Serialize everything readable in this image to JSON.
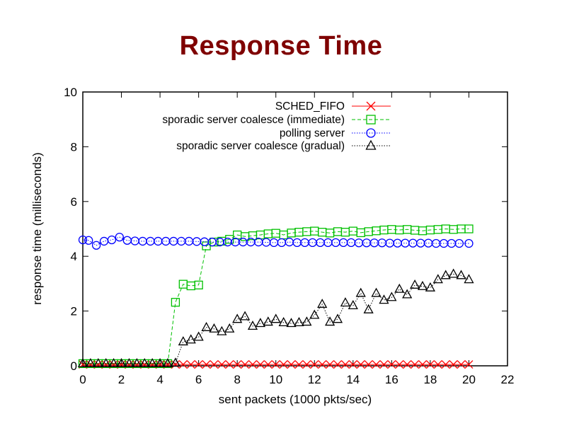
{
  "slide": {
    "title": "Response Time"
  },
  "chart_data": {
    "type": "line",
    "title": "",
    "xlabel": "sent packets (1000 pkts/sec)",
    "ylabel": "response time (milliseconds)",
    "xlim": [
      0,
      22
    ],
    "ylim": [
      0,
      10
    ],
    "xticks": [
      0,
      2,
      4,
      6,
      8,
      10,
      12,
      14,
      16,
      18,
      20,
      22
    ],
    "yticks": [
      0,
      2,
      4,
      6,
      8,
      10
    ],
    "grid": false,
    "legend_position": "top-right",
    "series": [
      {
        "name": "SCHED_FIFO",
        "color": "#ff0000",
        "marker": "x",
        "dash": "solid",
        "x": [
          0,
          0.4,
          0.8,
          1.2,
          1.6,
          2.0,
          2.4,
          2.8,
          3.2,
          3.6,
          4.0,
          4.4,
          4.8,
          5.2,
          5.6,
          6.0,
          6.4,
          6.8,
          7.2,
          7.6,
          8.0,
          8.4,
          8.8,
          9.2,
          9.6,
          10.0,
          10.4,
          10.8,
          11.2,
          11.6,
          12.0,
          12.4,
          12.8,
          13.2,
          13.6,
          14.0,
          14.4,
          14.8,
          15.2,
          15.6,
          16.0,
          16.4,
          16.8,
          17.2,
          17.6,
          18.0,
          18.4,
          18.8,
          19.2,
          19.6,
          20.0
        ],
        "y": [
          0.05,
          0.05,
          0.05,
          0.05,
          0.05,
          0.05,
          0.05,
          0.05,
          0.05,
          0.05,
          0.05,
          0.05,
          0.05,
          0.05,
          0.05,
          0.05,
          0.05,
          0.05,
          0.05,
          0.05,
          0.05,
          0.05,
          0.05,
          0.05,
          0.05,
          0.05,
          0.05,
          0.05,
          0.05,
          0.05,
          0.05,
          0.05,
          0.05,
          0.05,
          0.05,
          0.05,
          0.05,
          0.05,
          0.05,
          0.05,
          0.05,
          0.05,
          0.05,
          0.05,
          0.05,
          0.05,
          0.05,
          0.05,
          0.05,
          0.05,
          0.05
        ]
      },
      {
        "name": "sporadic server coalesce (immediate)",
        "color": "#00c000",
        "marker": "square",
        "dash": "dashed",
        "x": [
          0,
          0.4,
          0.8,
          1.2,
          1.6,
          2.0,
          2.4,
          2.8,
          3.2,
          3.6,
          4.0,
          4.4,
          4.8,
          5.2,
          5.6,
          6.0,
          6.4,
          6.8,
          7.2,
          7.6,
          8.0,
          8.4,
          8.8,
          9.2,
          9.6,
          10.0,
          10.4,
          10.8,
          11.2,
          11.6,
          12.0,
          12.4,
          12.8,
          13.2,
          13.6,
          14.0,
          14.4,
          14.8,
          15.2,
          15.6,
          16.0,
          16.4,
          16.8,
          17.2,
          17.6,
          18.0,
          18.4,
          18.8,
          19.2,
          19.6,
          20.0
        ],
        "y": [
          0.08,
          0.08,
          0.08,
          0.08,
          0.08,
          0.08,
          0.08,
          0.08,
          0.08,
          0.08,
          0.08,
          0.08,
          2.32,
          2.98,
          2.92,
          2.95,
          4.38,
          4.52,
          4.55,
          4.62,
          4.78,
          4.72,
          4.75,
          4.78,
          4.82,
          4.84,
          4.78,
          4.85,
          4.88,
          4.9,
          4.92,
          4.88,
          4.85,
          4.9,
          4.88,
          4.92,
          4.86,
          4.9,
          4.93,
          4.96,
          4.98,
          4.96,
          4.98,
          4.95,
          4.93,
          4.96,
          4.98,
          5.0,
          4.98,
          5.0,
          5.0
        ]
      },
      {
        "name": "polling server",
        "color": "#0000ff",
        "marker": "circle",
        "dash": "dotted",
        "x": [
          0,
          0.3,
          0.7,
          1.1,
          1.5,
          1.9,
          2.3,
          2.7,
          3.1,
          3.5,
          3.9,
          4.3,
          4.7,
          5.1,
          5.5,
          5.9,
          6.3,
          6.7,
          7.1,
          7.5,
          7.9,
          8.3,
          8.7,
          9.1,
          9.5,
          9.9,
          10.3,
          10.7,
          11.1,
          11.5,
          11.9,
          12.3,
          12.7,
          13.1,
          13.5,
          13.9,
          14.3,
          14.7,
          15.1,
          15.5,
          15.9,
          16.3,
          16.7,
          17.1,
          17.5,
          17.9,
          18.3,
          18.7,
          19.1,
          19.5,
          20.0
        ],
        "y": [
          4.6,
          4.58,
          4.4,
          4.55,
          4.6,
          4.7,
          4.58,
          4.56,
          4.55,
          4.55,
          4.55,
          4.55,
          4.55,
          4.55,
          4.55,
          4.54,
          4.53,
          4.52,
          4.52,
          4.52,
          4.52,
          4.52,
          4.52,
          4.52,
          4.51,
          4.5,
          4.5,
          4.52,
          4.5,
          4.5,
          4.5,
          4.5,
          4.5,
          4.5,
          4.5,
          4.5,
          4.49,
          4.49,
          4.49,
          4.49,
          4.48,
          4.48,
          4.48,
          4.48,
          4.48,
          4.48,
          4.47,
          4.47,
          4.47,
          4.47,
          4.47
        ]
      },
      {
        "name": "sporadic server coalesce (gradual)",
        "color": "#000000",
        "marker": "triangle",
        "dash": "dotted",
        "x": [
          0,
          0.4,
          0.8,
          1.2,
          1.6,
          2.0,
          2.4,
          2.8,
          3.2,
          3.6,
          4.0,
          4.4,
          4.8,
          5.2,
          5.6,
          6.0,
          6.4,
          6.8,
          7.2,
          7.6,
          8.0,
          8.4,
          8.8,
          9.2,
          9.6,
          10.0,
          10.4,
          10.8,
          11.2,
          11.6,
          12.0,
          12.4,
          12.8,
          13.2,
          13.6,
          14.0,
          14.4,
          14.8,
          15.2,
          15.6,
          16.0,
          16.4,
          16.8,
          17.2,
          17.6,
          18.0,
          18.4,
          18.8,
          19.2,
          19.6,
          20.0
        ],
        "y": [
          0.08,
          0.08,
          0.08,
          0.08,
          0.08,
          0.08,
          0.08,
          0.08,
          0.08,
          0.08,
          0.08,
          0.08,
          0.1,
          0.88,
          0.95,
          1.05,
          1.4,
          1.35,
          1.25,
          1.35,
          1.7,
          1.8,
          1.45,
          1.55,
          1.6,
          1.7,
          1.58,
          1.55,
          1.58,
          1.6,
          1.85,
          2.25,
          1.6,
          1.7,
          2.3,
          2.2,
          2.65,
          2.05,
          2.65,
          2.4,
          2.5,
          2.8,
          2.6,
          2.95,
          2.9,
          2.85,
          3.15,
          3.3,
          3.35,
          3.3,
          3.15
        ]
      }
    ]
  }
}
